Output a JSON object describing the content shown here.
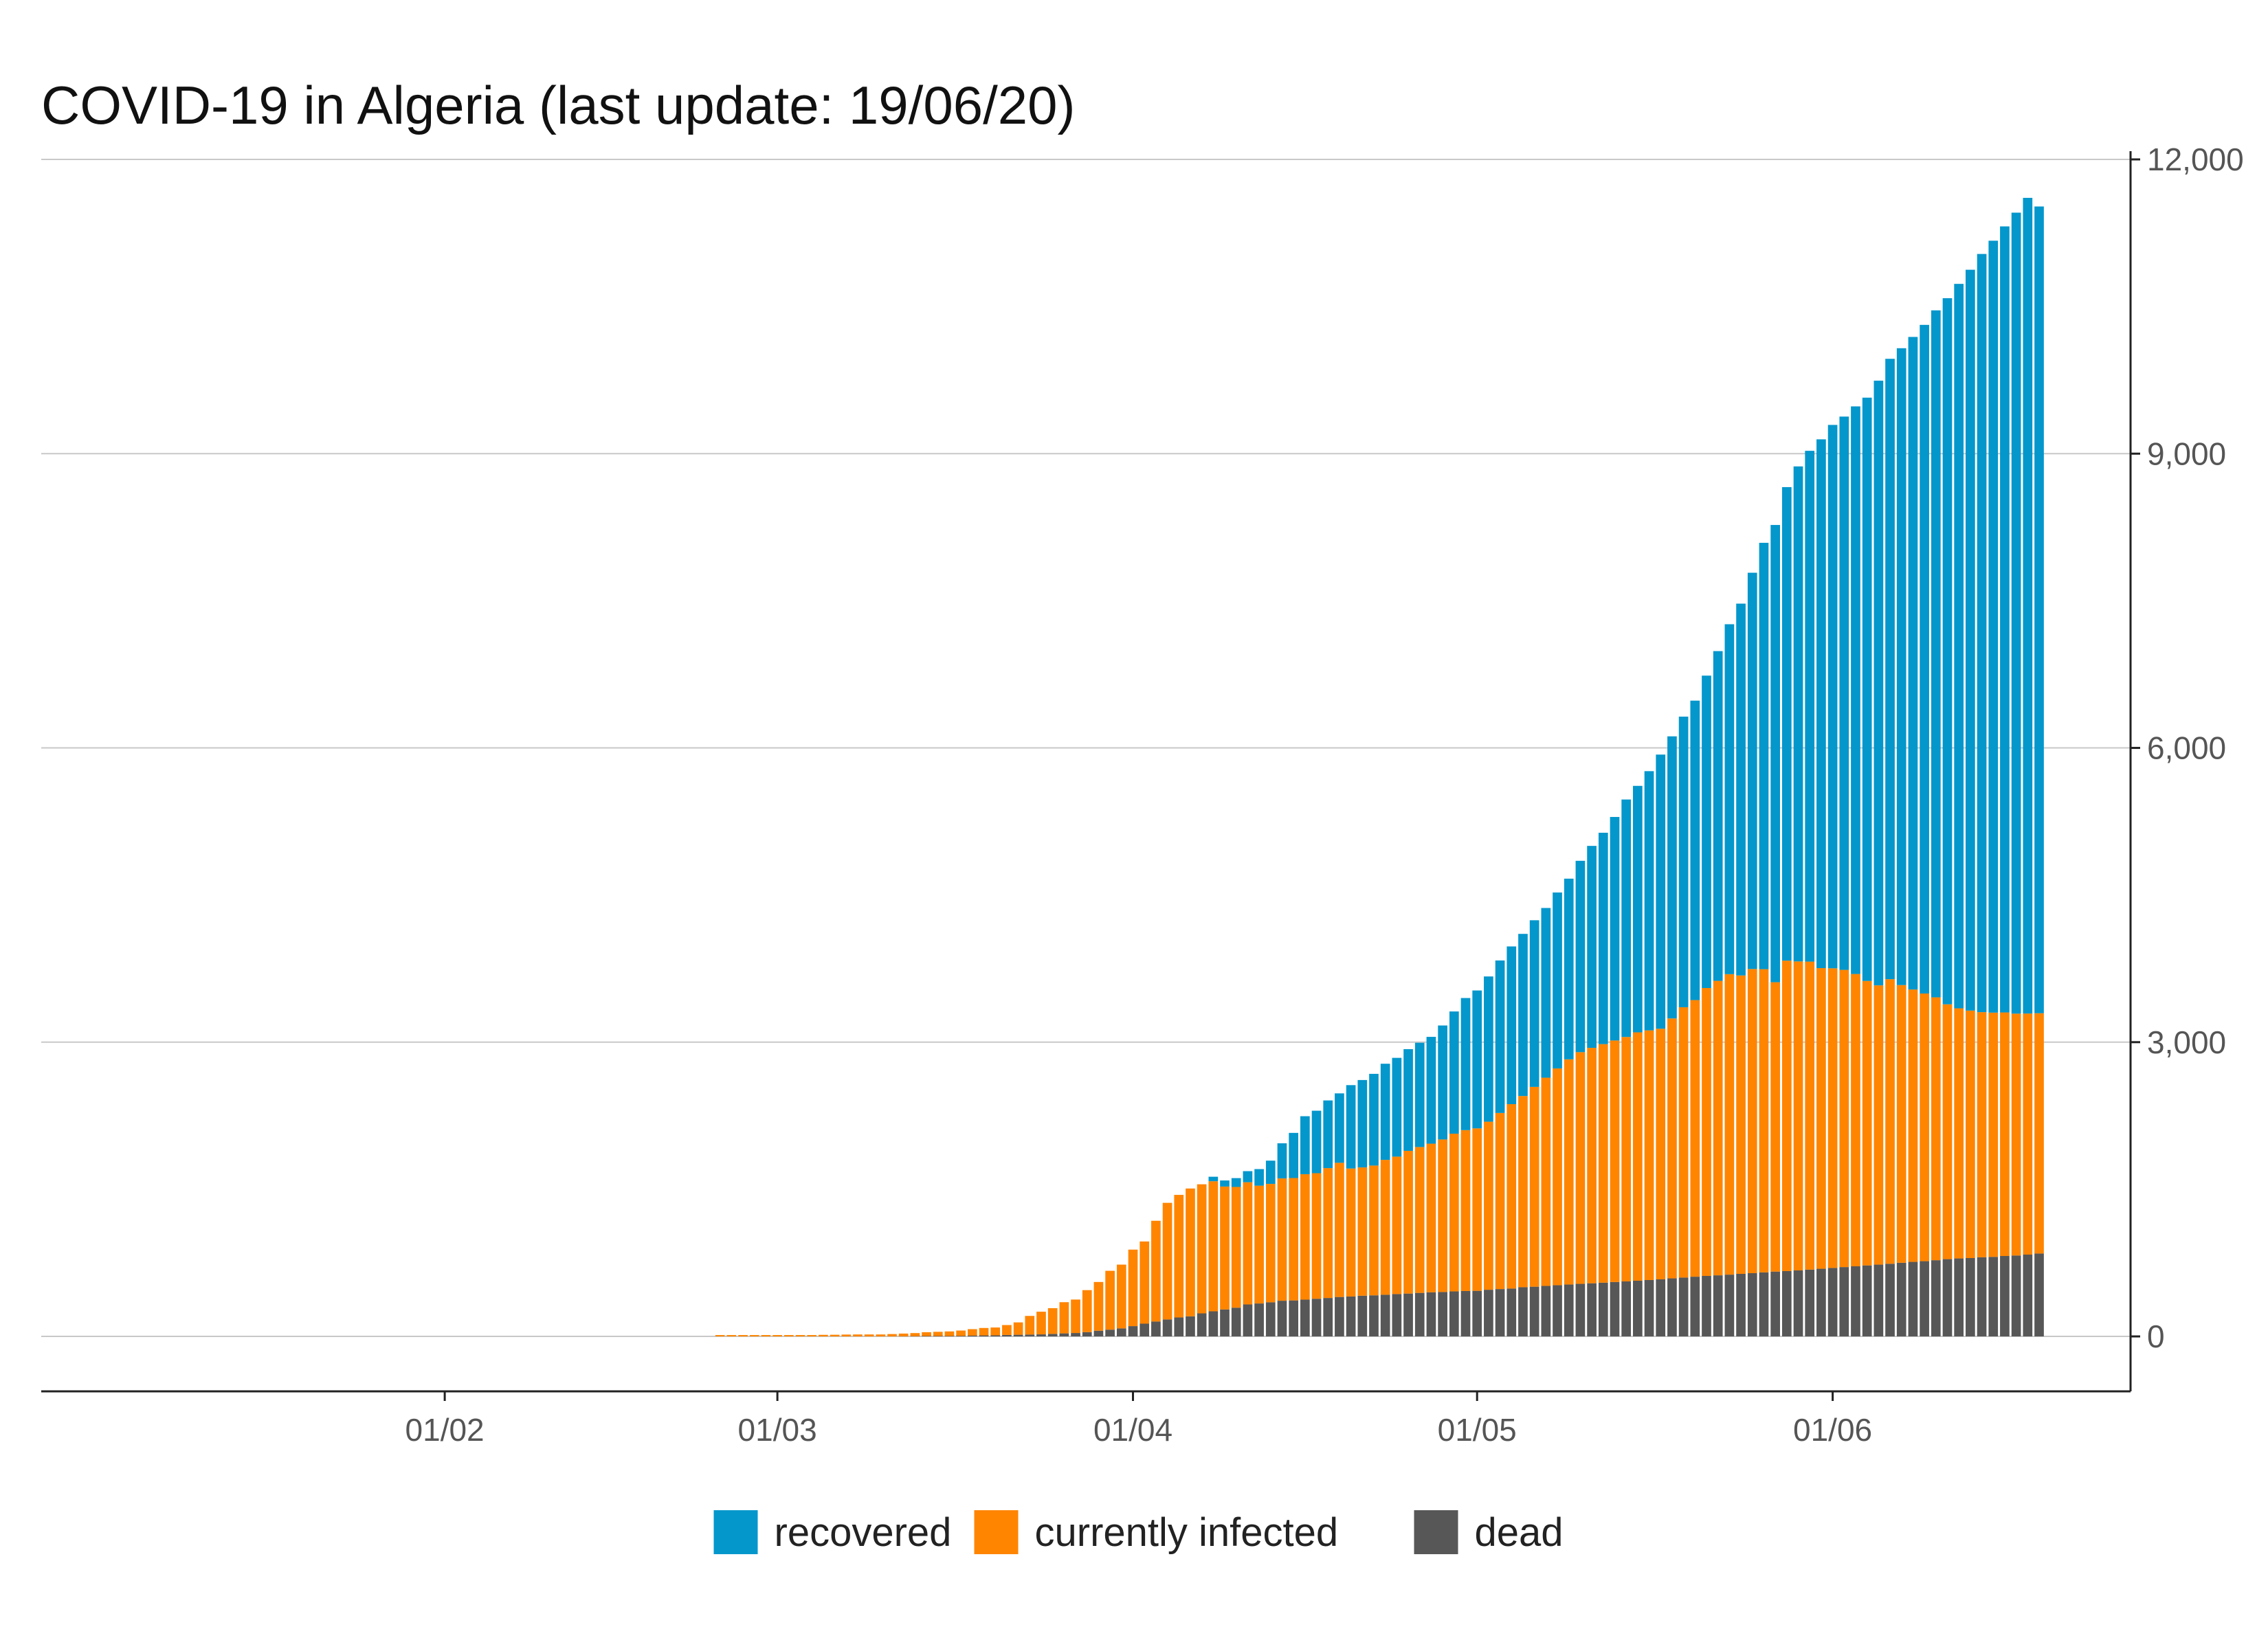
{
  "chart_data": {
    "type": "bar",
    "stacked": true,
    "title": "COVID-19 in Algeria (last update: 19/06/20)",
    "xlabel": "",
    "ylabel": "",
    "x_start": "2020-01-13",
    "x_end": "2020-06-19",
    "x_ticks": [
      {
        "date": "2020-02-01",
        "label": "01/02"
      },
      {
        "date": "2020-03-01",
        "label": "01/03"
      },
      {
        "date": "2020-04-01",
        "label": "01/04"
      },
      {
        "date": "2020-05-01",
        "label": "01/05"
      },
      {
        "date": "2020-06-01",
        "label": "01/06"
      }
    ],
    "y_axis_position": "right",
    "ylim": [
      -560,
      12000
    ],
    "y_ticks": [
      {
        "value": 0,
        "label": "0"
      },
      {
        "value": 3000,
        "label": "3,000"
      },
      {
        "value": 6000,
        "label": "6,000"
      },
      {
        "value": 9000,
        "label": "9,000"
      },
      {
        "value": 12000,
        "label": "12,000"
      }
    ],
    "grid": "horizontal",
    "legend_position": "bottom",
    "series": [
      {
        "name": "recovered",
        "color": "#0397cc"
      },
      {
        "name": "currently infected",
        "color": "#ff8500"
      },
      {
        "name": "dead",
        "color": "#575757"
      }
    ],
    "data_by_date": {
      "dates": [
        "2020-02-25",
        "2020-02-26",
        "2020-02-27",
        "2020-02-28",
        "2020-02-29",
        "2020-03-01",
        "2020-03-02",
        "2020-03-03",
        "2020-03-04",
        "2020-03-05",
        "2020-03-06",
        "2020-03-07",
        "2020-03-08",
        "2020-03-09",
        "2020-03-10",
        "2020-03-11",
        "2020-03-12",
        "2020-03-13",
        "2020-03-14",
        "2020-03-15",
        "2020-03-16",
        "2020-03-17",
        "2020-03-18",
        "2020-03-19",
        "2020-03-20",
        "2020-03-21",
        "2020-03-22",
        "2020-03-23",
        "2020-03-24",
        "2020-03-25",
        "2020-03-26",
        "2020-03-27",
        "2020-03-28",
        "2020-03-29",
        "2020-03-30",
        "2020-03-31",
        "2020-04-01",
        "2020-04-02",
        "2020-04-03",
        "2020-04-04",
        "2020-04-05",
        "2020-04-06",
        "2020-04-07",
        "2020-04-08",
        "2020-04-09",
        "2020-04-10",
        "2020-04-11",
        "2020-04-12",
        "2020-04-13",
        "2020-04-14",
        "2020-04-15",
        "2020-04-16",
        "2020-04-17",
        "2020-04-18",
        "2020-04-19",
        "2020-04-20",
        "2020-04-21",
        "2020-04-22",
        "2020-04-23",
        "2020-04-24",
        "2020-04-25",
        "2020-04-26",
        "2020-04-27",
        "2020-04-28",
        "2020-04-29",
        "2020-04-30",
        "2020-05-01",
        "2020-05-02",
        "2020-05-03",
        "2020-05-04",
        "2020-05-05",
        "2020-05-06",
        "2020-05-07",
        "2020-05-08",
        "2020-05-09",
        "2020-05-10",
        "2020-05-11",
        "2020-05-12",
        "2020-05-13",
        "2020-05-14",
        "2020-05-15",
        "2020-05-16",
        "2020-05-17",
        "2020-05-18",
        "2020-05-19",
        "2020-05-20",
        "2020-05-21",
        "2020-05-22",
        "2020-05-23",
        "2020-05-24",
        "2020-05-25",
        "2020-05-26",
        "2020-05-27",
        "2020-05-28",
        "2020-05-29",
        "2020-05-30",
        "2020-05-31",
        "2020-06-01",
        "2020-06-02",
        "2020-06-03",
        "2020-06-04",
        "2020-06-05",
        "2020-06-06",
        "2020-06-07",
        "2020-06-08",
        "2020-06-09",
        "2020-06-10",
        "2020-06-11",
        "2020-06-12",
        "2020-06-13",
        "2020-06-14",
        "2020-06-15",
        "2020-06-16",
        "2020-06-17",
        "2020-06-18",
        "2020-06-19"
      ],
      "dead": [
        0,
        0,
        0,
        0,
        0,
        0,
        0,
        0,
        0,
        0,
        0,
        0,
        0,
        0,
        0,
        0,
        1,
        2,
        4,
        4,
        4,
        5,
        8,
        10,
        11,
        15,
        17,
        19,
        21,
        26,
        31,
        35,
        44,
        58,
        69,
        82,
        105,
        130,
        152,
        173,
        193,
        205,
        235,
        256,
        275,
        293,
        326,
        336,
        348,
        364,
        367,
        375,
        384,
        392,
        402,
        407,
        415,
        419,
        425,
        432,
        437,
        444,
        450,
        453,
        459,
        463,
        465,
        476,
        483,
        488,
        502,
        507,
        515,
        522,
        529,
        536,
        542,
        548,
        555,
        561,
        568,
        575,
        582,
        592,
        600,
        609,
        617,
        623,
        630,
        638,
        645,
        653,
        661,
        666,
        673,
        681,
        690,
        698,
        707,
        715,
        724,
        732,
        741,
        751,
        760,
        767,
        777,
        788,
        795,
        799,
        807,
        811,
        820,
        825,
        834,
        845
      ],
      "infected": [
        1,
        1,
        1,
        1,
        1,
        3,
        4,
        12,
        14,
        16,
        17,
        19,
        20,
        20,
        20,
        24,
        28,
        32,
        39,
        43,
        47,
        55,
        66,
        76,
        80,
        101,
        126,
        190,
        231,
        262,
        318,
        341,
        428,
        497,
        600,
        650,
        780,
        838,
        1027,
        1189,
        1250,
        1303,
        1316,
        1326,
        1253,
        1231,
        1246,
        1201,
        1207,
        1247,
        1248,
        1279,
        1280,
        1324,
        1368,
        1305,
        1308,
        1323,
        1375,
        1401,
        1455,
        1487,
        1515,
        1555,
        1608,
        1640,
        1656,
        1713,
        1795,
        1880,
        1949,
        2037,
        2123,
        2210,
        2296,
        2362,
        2400,
        2432,
        2462,
        2492,
        2532,
        2545,
        2555,
        2650,
        2756,
        2820,
        2935,
        3002,
        3063,
        3042,
        3101,
        3091,
        2950,
        3165,
        3150,
        3140,
        3065,
        3055,
        3030,
        2980,
        2900,
        2847,
        2901,
        2831,
        2777,
        2729,
        2680,
        2598,
        2550,
        2523,
        2499,
        2490,
        2483,
        2466,
        2458,
        2450
      ],
      "recovered": [
        0,
        0,
        0,
        0,
        0,
        0,
        0,
        0,
        0,
        0,
        0,
        0,
        0,
        0,
        0,
        0,
        0,
        0,
        0,
        0,
        0,
        0,
        0,
        0,
        0,
        0,
        0,
        0,
        0,
        0,
        0,
        0,
        0,
        0,
        0,
        0,
        0,
        0,
        0,
        0,
        0,
        0,
        0,
        46,
        62,
        90,
        113,
        169,
        237,
        358,
        460,
        591,
        637,
        690,
        708,
        850,
        891,
        935,
        980,
        1007,
        1037,
        1063,
        1089,
        1162,
        1246,
        1347,
        1406,
        1481,
        1555,
        1608,
        1653,
        1699,
        1730,
        1794,
        1842,
        1951,
        2059,
        2155,
        2279,
        2421,
        2513,
        2643,
        2795,
        2876,
        2963,
        3053,
        3185,
        3362,
        3568,
        3791,
        4040,
        4347,
        4662,
        4828,
        5047,
        5208,
        5391,
        5540,
        5641,
        5787,
        5947,
        6165,
        6325,
        6493,
        6653,
        6817,
        7004,
        7199,
        7386,
        7553,
        7730,
        7870,
        8014,
        8166,
        8316,
        8225
      ]
    }
  }
}
